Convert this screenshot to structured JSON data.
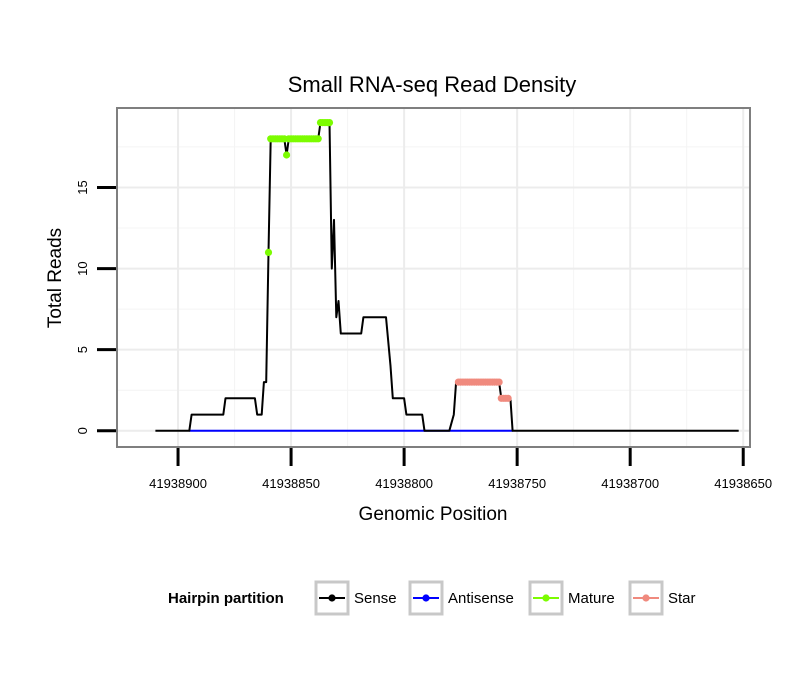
{
  "chart_data": {
    "type": "line",
    "title": "Small RNA-seq Read Density",
    "xlabel": "Genomic Position",
    "ylabel": "Total Reads",
    "x_reversed": true,
    "xlim": [
      41938927,
      41938647
    ],
    "ylim": [
      -1,
      19.9
    ],
    "x_ticks": [
      41938900,
      41938850,
      41938800,
      41938750,
      41938700,
      41938650
    ],
    "x_tick_labels": [
      "41938900",
      "41938850",
      "41938800",
      "41938750",
      "41938700",
      "41938650"
    ],
    "y_ticks": [
      0,
      5,
      10,
      15
    ],
    "y_tick_labels": [
      "0",
      "5",
      "10",
      "15"
    ],
    "grid": true,
    "legend": {
      "title": "Hairpin partition",
      "position": "bottom",
      "entries": [
        {
          "name": "Sense",
          "color": "#000000"
        },
        {
          "name": "Antisense",
          "color": "#0000ff"
        },
        {
          "name": "Mature",
          "color": "#7cfc00"
        },
        {
          "name": "Star",
          "color": "#f08a7e"
        }
      ]
    },
    "series": [
      {
        "name": "Sense",
        "color": "#000000",
        "points": [
          [
            41938910,
            0
          ],
          [
            41938895,
            0
          ],
          [
            41938894,
            1
          ],
          [
            41938880,
            1
          ],
          [
            41938879,
            2
          ],
          [
            41938866,
            2
          ],
          [
            41938865,
            1
          ],
          [
            41938863,
            1
          ],
          [
            41938862,
            3
          ],
          [
            41938861,
            3
          ],
          [
            41938860,
            11
          ],
          [
            41938859,
            18
          ],
          [
            41938853,
            18
          ],
          [
            41938852,
            17
          ],
          [
            41938851,
            18
          ],
          [
            41938838,
            18
          ],
          [
            41938837,
            19
          ],
          [
            41938833,
            19
          ],
          [
            41938832,
            10
          ],
          [
            41938831,
            13
          ],
          [
            41938830,
            7
          ],
          [
            41938829,
            8
          ],
          [
            41938828,
            6
          ],
          [
            41938819,
            6
          ],
          [
            41938818,
            7
          ],
          [
            41938808,
            7
          ],
          [
            41938806,
            4
          ],
          [
            41938805,
            2
          ],
          [
            41938800,
            2
          ],
          [
            41938799,
            1
          ],
          [
            41938792,
            1
          ],
          [
            41938791,
            0
          ],
          [
            41938780,
            0
          ],
          [
            41938778,
            1
          ],
          [
            41938777,
            3
          ],
          [
            41938758,
            3
          ],
          [
            41938757,
            2
          ],
          [
            41938753,
            2
          ],
          [
            41938752,
            0
          ],
          [
            41938652,
            0
          ]
        ]
      },
      {
        "name": "Antisense",
        "color": "#0000ff",
        "points": [
          [
            41938895,
            0
          ],
          [
            41938752,
            0
          ]
        ]
      },
      {
        "name": "Mature",
        "color": "#7cfc00",
        "points": [
          [
            41938860,
            11
          ],
          [
            41938859,
            18
          ],
          [
            41938858,
            18
          ],
          [
            41938857,
            18
          ],
          [
            41938856,
            18
          ],
          [
            41938855,
            18
          ],
          [
            41938854,
            18
          ],
          [
            41938853,
            18
          ],
          [
            41938852,
            17
          ],
          [
            41938851,
            18
          ],
          [
            41938850,
            18
          ],
          [
            41938849,
            18
          ],
          [
            41938848,
            18
          ],
          [
            41938847,
            18
          ],
          [
            41938846,
            18
          ],
          [
            41938845,
            18
          ],
          [
            41938844,
            18
          ],
          [
            41938843,
            18
          ],
          [
            41938842,
            18
          ],
          [
            41938841,
            18
          ],
          [
            41938840,
            18
          ],
          [
            41938839,
            18
          ],
          [
            41938838,
            18
          ],
          [
            41938837,
            19
          ],
          [
            41938836,
            19
          ],
          [
            41938835,
            19
          ],
          [
            41938834,
            19
          ],
          [
            41938833,
            19
          ]
        ]
      },
      {
        "name": "Star",
        "color": "#f08a7e",
        "points": [
          [
            41938776,
            3
          ],
          [
            41938775,
            3
          ],
          [
            41938774,
            3
          ],
          [
            41938773,
            3
          ],
          [
            41938772,
            3
          ],
          [
            41938771,
            3
          ],
          [
            41938770,
            3
          ],
          [
            41938769,
            3
          ],
          [
            41938768,
            3
          ],
          [
            41938767,
            3
          ],
          [
            41938766,
            3
          ],
          [
            41938765,
            3
          ],
          [
            41938764,
            3
          ],
          [
            41938763,
            3
          ],
          [
            41938762,
            3
          ],
          [
            41938761,
            3
          ],
          [
            41938760,
            3
          ],
          [
            41938759,
            3
          ],
          [
            41938758,
            3
          ],
          [
            41938757,
            2
          ],
          [
            41938756,
            2
          ],
          [
            41938755,
            2
          ],
          [
            41938754,
            2
          ]
        ]
      }
    ]
  }
}
